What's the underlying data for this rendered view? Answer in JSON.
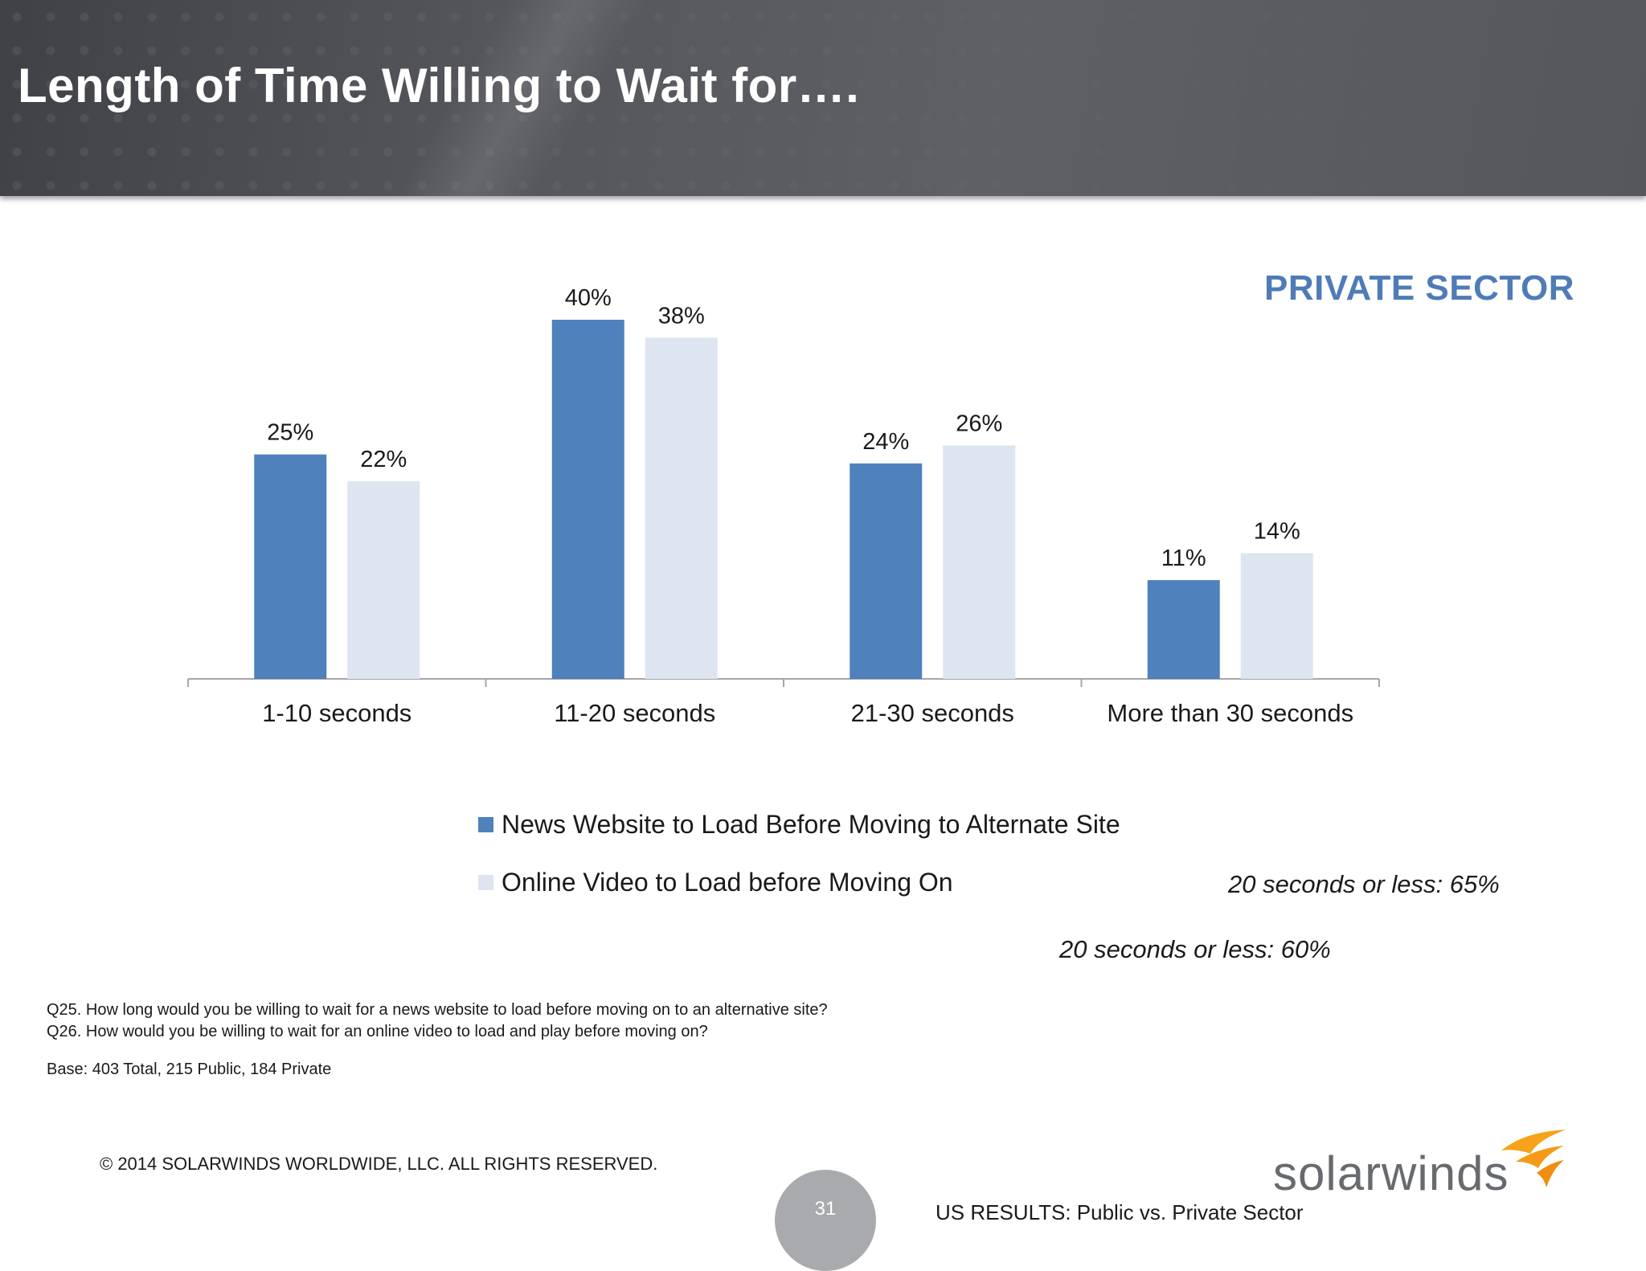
{
  "header": {
    "title": "Length of Time Willing to Wait for…."
  },
  "sector_label": "PRIVATE SECTOR",
  "chart_data": {
    "type": "bar",
    "categories": [
      "1-10 seconds",
      "11-20 seconds",
      "21-30 seconds",
      "More than 30 seconds"
    ],
    "series": [
      {
        "name": "News Website to Load Before Moving to Alternate Site",
        "values": [
          25,
          40,
          24,
          11
        ],
        "labels": [
          "25%",
          "40%",
          "24%",
          "11%"
        ],
        "color": "#4f81bd"
      },
      {
        "name": "Online Video to Load before Moving On",
        "values": [
          22,
          38,
          26,
          14
        ],
        "labels": [
          "22%",
          "38%",
          "26%",
          "14%"
        ],
        "color": "#dde5f1"
      }
    ],
    "ylim": [
      0,
      40
    ],
    "grid": false,
    "legend_position": "bottom"
  },
  "notes": {
    "news_summary": "20 seconds or less:  65%",
    "video_summary": "20 seconds or less:  60%"
  },
  "footnotes": {
    "q25": "Q25. How long would you be willing to wait for a news website to load before moving on to an alternative site?",
    "q26": "Q26. How would you be willing to wait for an online video to load and play before moving on?",
    "base": "Base:  403  Total, 215 Public, 184 Private"
  },
  "footer": {
    "copyright": "© 2014 SOLARWINDS WORLDWIDE, LLC.  ALL RIGHTS RESERVED.",
    "page_number": "31",
    "subtitle": "US RESULTS:  Public vs. Private Sector",
    "logo_text": "solarwinds",
    "logo_icon": "flame-icon"
  }
}
